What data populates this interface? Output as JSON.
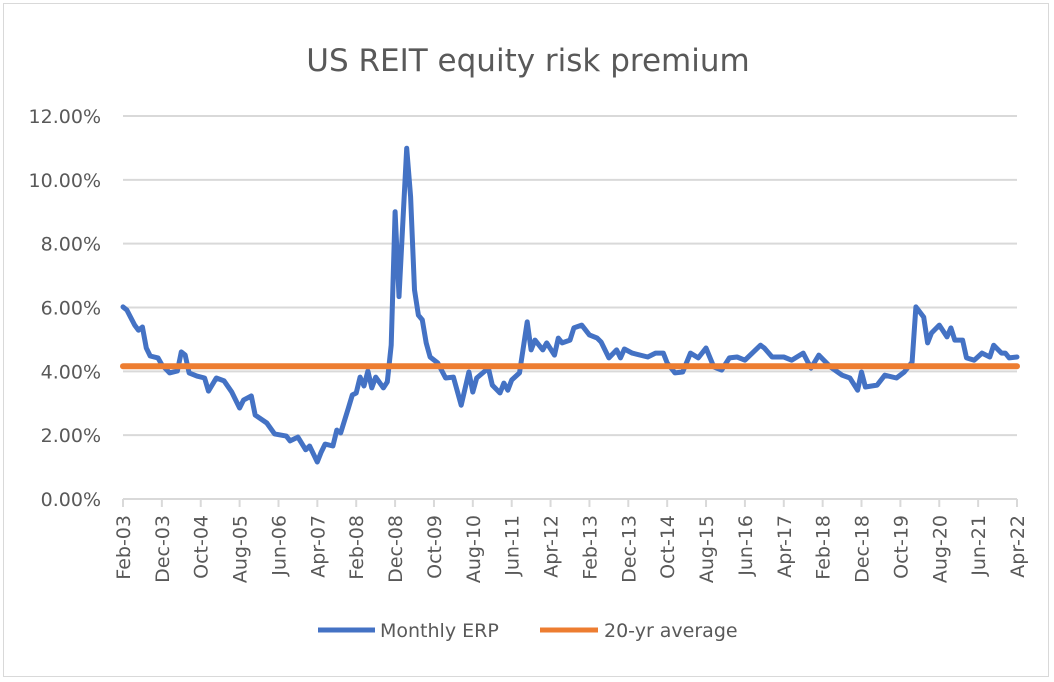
{
  "chart_data": {
    "type": "line",
    "title": "US REIT equity risk premium",
    "xlabel": "",
    "ylabel": "",
    "ylim": [
      0,
      12
    ],
    "y_tick_labels": [
      "0.00%",
      "2.00%",
      "4.00%",
      "6.00%",
      "8.00%",
      "10.00%",
      "12.00%"
    ],
    "y_tick_values": [
      0,
      2,
      4,
      6,
      8,
      10,
      12
    ],
    "x_range": [
      "2003-02",
      "2022-04"
    ],
    "x_tick_labels": [
      "Feb-03",
      "Dec-03",
      "Oct-04",
      "Aug-05",
      "Jun-06",
      "Apr-07",
      "Feb-08",
      "Dec-08",
      "Oct-09",
      "Aug-10",
      "Jun-11",
      "Apr-12",
      "Feb-13",
      "Dec-13",
      "Oct-14",
      "Aug-15",
      "Jun-16",
      "Apr-17",
      "Feb-18",
      "Dec-18",
      "Oct-19",
      "Aug-20",
      "Jun-21",
      "Apr-22"
    ],
    "grid": "horizontal",
    "legend_position": "bottom",
    "series": [
      {
        "name": "Monthly ERP",
        "color": "#4472c4",
        "points": [
          [
            "2003-02",
            6.02
          ],
          [
            "2003-03",
            5.92
          ],
          [
            "2003-05",
            5.45
          ],
          [
            "2003-06",
            5.29
          ],
          [
            "2003-07",
            5.39
          ],
          [
            "2003-08",
            4.73
          ],
          [
            "2003-09",
            4.48
          ],
          [
            "2003-11",
            4.42
          ],
          [
            "2003-12",
            4.2
          ],
          [
            "2004-02",
            3.95
          ],
          [
            "2004-04",
            4.01
          ],
          [
            "2004-05",
            4.61
          ],
          [
            "2004-06",
            4.51
          ],
          [
            "2004-07",
            3.95
          ],
          [
            "2004-09",
            3.85
          ],
          [
            "2004-11",
            3.79
          ],
          [
            "2004-12",
            3.38
          ],
          [
            "2005-02",
            3.79
          ],
          [
            "2005-04",
            3.7
          ],
          [
            "2005-06",
            3.35
          ],
          [
            "2005-08",
            2.85
          ],
          [
            "2005-09",
            3.1
          ],
          [
            "2005-11",
            3.23
          ],
          [
            "2005-12",
            2.63
          ],
          [
            "2006-03",
            2.38
          ],
          [
            "2006-05",
            2.04
          ],
          [
            "2006-08",
            1.97
          ],
          [
            "2006-09",
            1.82
          ],
          [
            "2006-11",
            1.94
          ],
          [
            "2007-01",
            1.54
          ],
          [
            "2007-02",
            1.66
          ],
          [
            "2007-04",
            1.16
          ],
          [
            "2007-05",
            1.47
          ],
          [
            "2007-06",
            1.72
          ],
          [
            "2007-08",
            1.66
          ],
          [
            "2007-09",
            2.16
          ],
          [
            "2007-10",
            2.07
          ],
          [
            "2007-12",
            2.85
          ],
          [
            "2008-01",
            3.26
          ],
          [
            "2008-02",
            3.32
          ],
          [
            "2008-03",
            3.82
          ],
          [
            "2008-04",
            3.54
          ],
          [
            "2008-05",
            4.01
          ],
          [
            "2008-06",
            3.48
          ],
          [
            "2008-07",
            3.82
          ],
          [
            "2008-09",
            3.48
          ],
          [
            "2008-10",
            3.67
          ],
          [
            "2008-11",
            4.82
          ],
          [
            "2008-12",
            9.0
          ],
          [
            "2009-01",
            6.34
          ],
          [
            "2009-03",
            10.99
          ],
          [
            "2009-04",
            9.47
          ],
          [
            "2009-05",
            6.55
          ],
          [
            "2009-06",
            5.76
          ],
          [
            "2009-07",
            5.61
          ],
          [
            "2009-08",
            4.89
          ],
          [
            "2009-09",
            4.45
          ],
          [
            "2009-11",
            4.26
          ],
          [
            "2010-01",
            3.79
          ],
          [
            "2010-03",
            3.82
          ],
          [
            "2010-05",
            2.94
          ],
          [
            "2010-07",
            3.98
          ],
          [
            "2010-08",
            3.35
          ],
          [
            "2010-09",
            3.79
          ],
          [
            "2010-12",
            4.1
          ],
          [
            "2011-01",
            3.57
          ],
          [
            "2011-03",
            3.32
          ],
          [
            "2011-04",
            3.63
          ],
          [
            "2011-05",
            3.41
          ],
          [
            "2011-06",
            3.73
          ],
          [
            "2011-08",
            3.95
          ],
          [
            "2011-10",
            5.55
          ],
          [
            "2011-11",
            4.67
          ],
          [
            "2011-12",
            4.98
          ],
          [
            "2012-02",
            4.67
          ],
          [
            "2012-03",
            4.89
          ],
          [
            "2012-05",
            4.51
          ],
          [
            "2012-06",
            5.04
          ],
          [
            "2012-07",
            4.89
          ],
          [
            "2012-09",
            4.98
          ],
          [
            "2012-10",
            5.36
          ],
          [
            "2012-12",
            5.45
          ],
          [
            "2013-02",
            5.14
          ],
          [
            "2013-04",
            5.04
          ],
          [
            "2013-05",
            4.92
          ],
          [
            "2013-07",
            4.42
          ],
          [
            "2013-09",
            4.67
          ],
          [
            "2013-10",
            4.42
          ],
          [
            "2013-11",
            4.7
          ],
          [
            "2014-01",
            4.57
          ],
          [
            "2014-05",
            4.45
          ],
          [
            "2014-07",
            4.57
          ],
          [
            "2014-09",
            4.57
          ],
          [
            "2014-10",
            4.26
          ],
          [
            "2014-12",
            3.95
          ],
          [
            "2015-02",
            3.98
          ],
          [
            "2015-04",
            4.57
          ],
          [
            "2015-06",
            4.42
          ],
          [
            "2015-08",
            4.73
          ],
          [
            "2015-10",
            4.14
          ],
          [
            "2015-12",
            4.04
          ],
          [
            "2016-02",
            4.42
          ],
          [
            "2016-04",
            4.45
          ],
          [
            "2016-06",
            4.35
          ],
          [
            "2016-10",
            4.82
          ],
          [
            "2016-11",
            4.73
          ],
          [
            "2017-01",
            4.45
          ],
          [
            "2017-04",
            4.45
          ],
          [
            "2017-06",
            4.35
          ],
          [
            "2017-09",
            4.57
          ],
          [
            "2017-11",
            4.1
          ],
          [
            "2018-01",
            4.51
          ],
          [
            "2018-04",
            4.14
          ],
          [
            "2018-07",
            3.88
          ],
          [
            "2018-09",
            3.79
          ],
          [
            "2018-11",
            3.41
          ],
          [
            "2018-12",
            3.98
          ],
          [
            "2019-01",
            3.51
          ],
          [
            "2019-04",
            3.57
          ],
          [
            "2019-06",
            3.88
          ],
          [
            "2019-09",
            3.79
          ],
          [
            "2019-11",
            3.98
          ],
          [
            "2020-01",
            4.29
          ],
          [
            "2020-02",
            6.02
          ],
          [
            "2020-04",
            5.7
          ],
          [
            "2020-05",
            4.89
          ],
          [
            "2020-06",
            5.2
          ],
          [
            "2020-08",
            5.45
          ],
          [
            "2020-10",
            5.08
          ],
          [
            "2020-11",
            5.36
          ],
          [
            "2020-12",
            4.98
          ],
          [
            "2021-02",
            4.98
          ],
          [
            "2021-03",
            4.42
          ],
          [
            "2021-05",
            4.35
          ],
          [
            "2021-07",
            4.57
          ],
          [
            "2021-09",
            4.45
          ],
          [
            "2021-10",
            4.82
          ],
          [
            "2021-12",
            4.57
          ],
          [
            "2022-01",
            4.57
          ],
          [
            "2022-02",
            4.42
          ],
          [
            "2022-04",
            4.45
          ]
        ]
      },
      {
        "name": "20-yr average",
        "color": "#ed7d31",
        "points": [
          [
            "2003-02",
            4.16
          ],
          [
            "2022-04",
            4.16
          ]
        ]
      }
    ]
  }
}
